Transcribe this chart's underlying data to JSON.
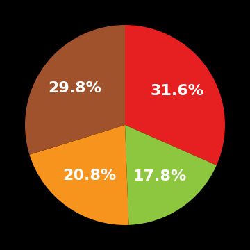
{
  "slices": [
    31.6,
    17.8,
    20.8,
    29.8
  ],
  "colors": [
    "#e62020",
    "#8dc63f",
    "#f7941d",
    "#a0522d"
  ],
  "labels": [
    "31.6%",
    "17.8%",
    "20.8%",
    "29.8%"
  ],
  "background_color": "#000000",
  "text_color": "#ffffff",
  "font_size": 16,
  "startangle": 90,
  "label_distance": 0.62,
  "counterclock": false
}
